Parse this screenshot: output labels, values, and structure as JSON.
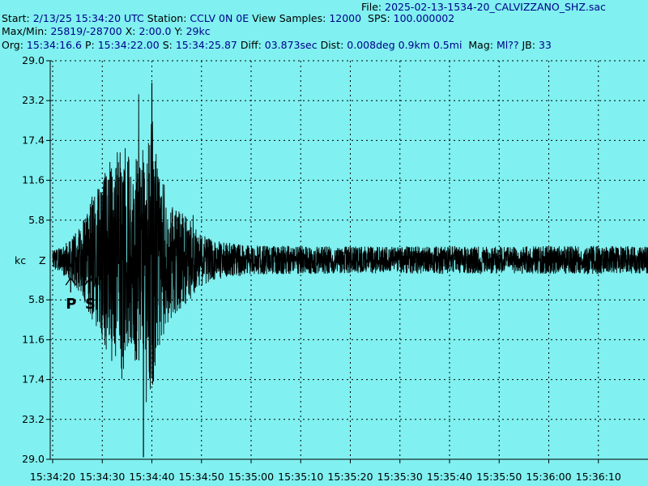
{
  "header": {
    "file_label": "File:",
    "file_value": "2025-02-13-1534-20_CALVIZZANO_SHZ.sac",
    "start_label": "Start:",
    "start_value": "2/13/25 15:34:20 UTC",
    "station_label": "Station:",
    "station_value": "CCLV 0N 0E",
    "view_samples_label": "View Samples:",
    "view_samples_value": "12000",
    "sps_label": "SPS:",
    "sps_value": "100.000002",
    "maxmin_label": "Max/Min:",
    "maxmin_value": "25819/-28700",
    "x_label": "X:",
    "x_value": "2:00.0",
    "y_label": "Y:",
    "y_value": "29kc",
    "org_label": "Org:",
    "org_value": "15:34:16.6",
    "p_label": "P:",
    "p_value": "15:34:22.00",
    "s_label": "S:",
    "s_value": "15:34:25.87",
    "diff_label": "Diff:",
    "diff_value": "03.873sec",
    "dist_label": "Dist:",
    "dist_value": "0.008deg 0.9km 0.5mi",
    "mag_label": "Mag:",
    "mag_value": "Ml??",
    "jb_label": "JB:",
    "jb_value": "33"
  },
  "colors": {
    "background": "#80F0F0",
    "trace": "#000000",
    "header_value": "#00008B",
    "grid": "#000000"
  },
  "chart_data": {
    "type": "line",
    "title": "",
    "xlabel": "",
    "ylabel": "kc",
    "channel_label": "Z",
    "y_tick_labels": [
      "29.0",
      "23.2",
      "17.4",
      "11.6",
      "5.8",
      "5.8",
      "11.6",
      "17.4",
      "23.2",
      "29.0"
    ],
    "y_tick_values": [
      29.0,
      23.2,
      17.4,
      11.6,
      5.8,
      -5.8,
      -11.6,
      -17.4,
      -23.2,
      -29.0
    ],
    "ylim": [
      -29.0,
      29.0
    ],
    "x_tick_labels": [
      "15:34:20",
      "15:34:30",
      "15:34:40",
      "15:34:50",
      "15:35:00",
      "15:35:10",
      "15:35:20",
      "15:35:30",
      "15:35:40",
      "15:35:50",
      "15:36:00",
      "15:36:10"
    ],
    "x_tick_seconds": [
      0,
      10,
      20,
      30,
      40,
      50,
      60,
      70,
      80,
      90,
      100,
      110
    ],
    "xlim_seconds": [
      0,
      120
    ],
    "grid": true,
    "markers": [
      {
        "label": "P",
        "time": "15:34:22.00",
        "seconds": 2.0
      },
      {
        "label": "S",
        "time": "15:34:25.87",
        "seconds": 5.87
      }
    ],
    "max_count": 25819,
    "min_count": -28700,
    "envelope_seconds": [
      0,
      2,
      4,
      5.87,
      8,
      10,
      12,
      14,
      16,
      17,
      18,
      19,
      20,
      21,
      22,
      24,
      26,
      28,
      30,
      32,
      35,
      40,
      50,
      60,
      70,
      80,
      90,
      100,
      110,
      120
    ],
    "envelope_kc": [
      1.5,
      2.5,
      4.0,
      6.0,
      11.0,
      14.0,
      18.0,
      21.0,
      17.0,
      18.0,
      19.0,
      18.0,
      25.8,
      17.0,
      14.0,
      10.0,
      8.5,
      6.5,
      4.5,
      3.5,
      3.0,
      2.5,
      2.4,
      2.3,
      2.3,
      2.4,
      2.3,
      2.4,
      2.4,
      2.3
    ]
  }
}
